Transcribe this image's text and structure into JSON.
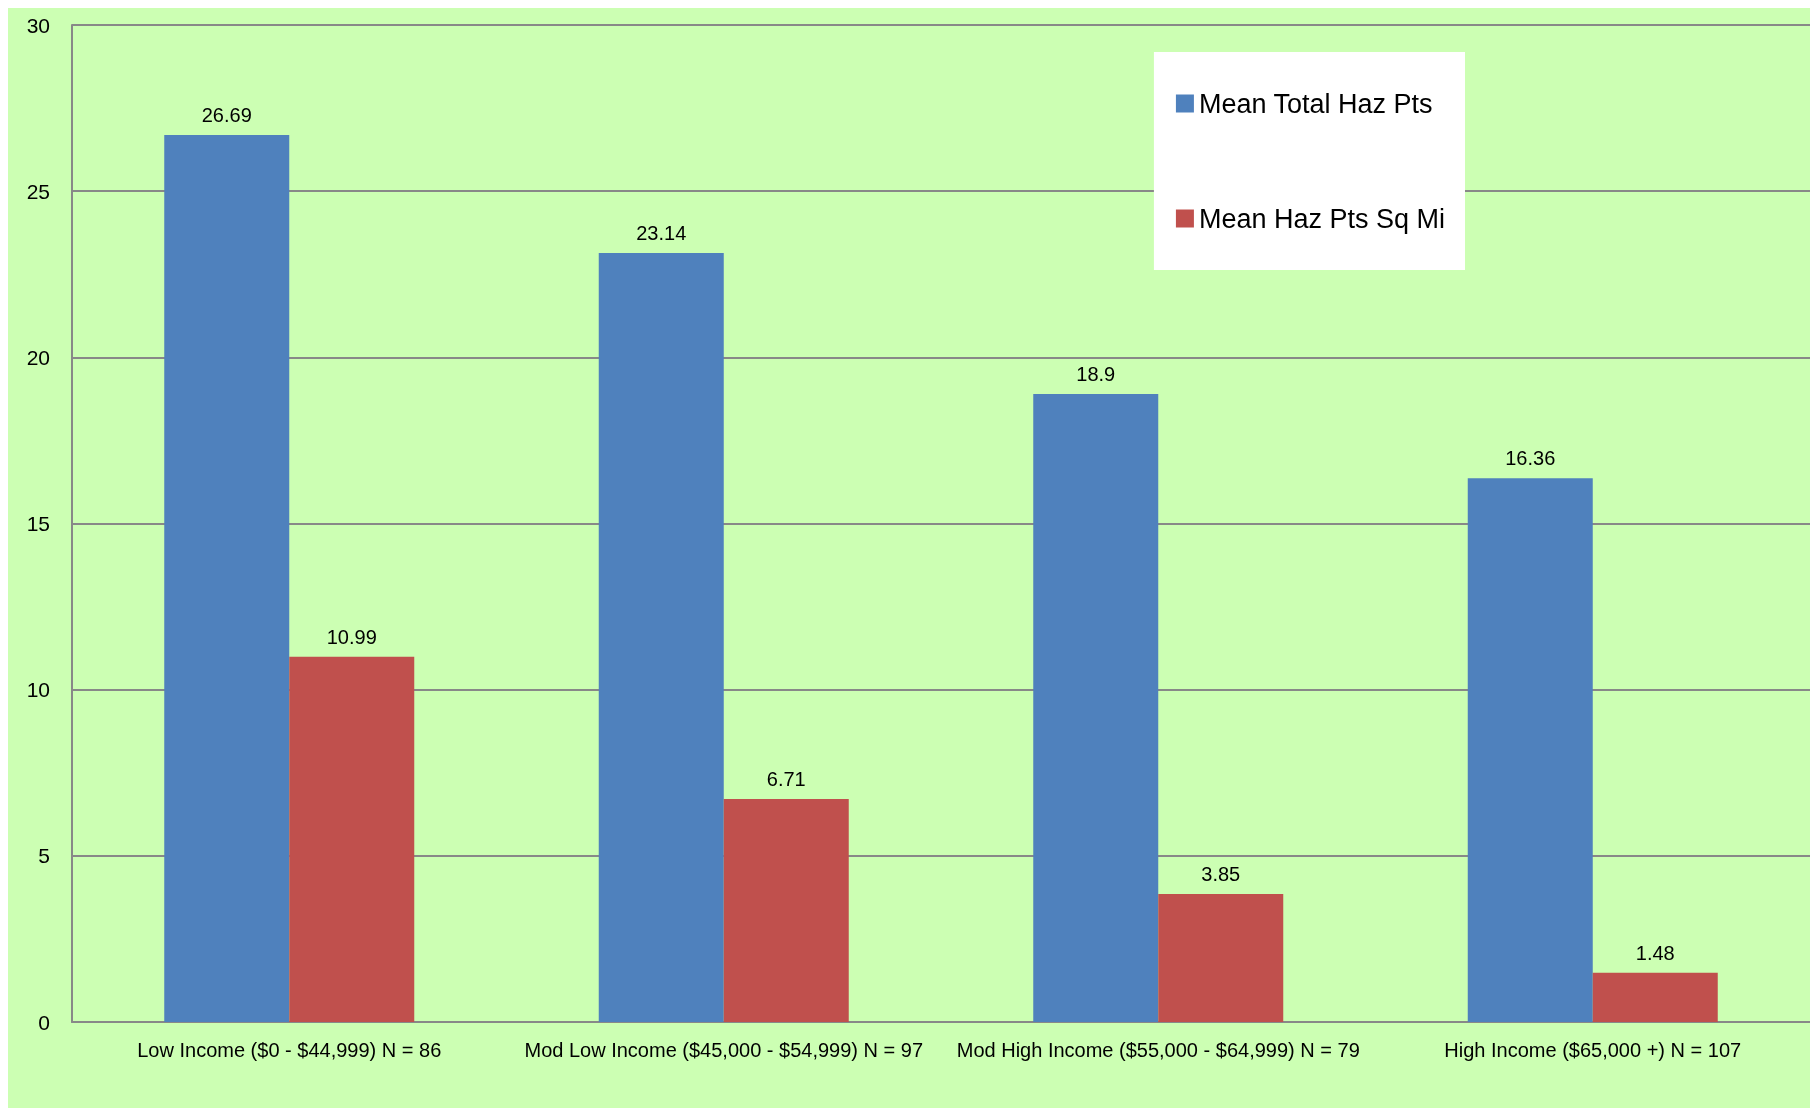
{
  "chart_data": {
    "type": "bar",
    "categories": [
      "Low Income ($0 - $44,999) N = 86",
      "Mod Low Income ($45,000 - $54,999) N = 97",
      "Mod High Income ($55,000 - $64,999) N = 79",
      "High Income ($65,000 +) N = 107"
    ],
    "series": [
      {
        "name": "Mean Total Haz Pts",
        "color": "#4f81bd",
        "values": [
          26.69,
          23.14,
          18.9,
          16.36
        ]
      },
      {
        "name": "Mean Haz Pts Sq Mi",
        "color": "#c0504d",
        "values": [
          10.99,
          6.71,
          3.85,
          1.48
        ]
      }
    ],
    "ylim": [
      0,
      30
    ],
    "yticks": [
      0,
      5,
      10,
      15,
      20,
      25,
      30
    ],
    "grid": "y",
    "legend": "top right",
    "data_labels": true
  }
}
